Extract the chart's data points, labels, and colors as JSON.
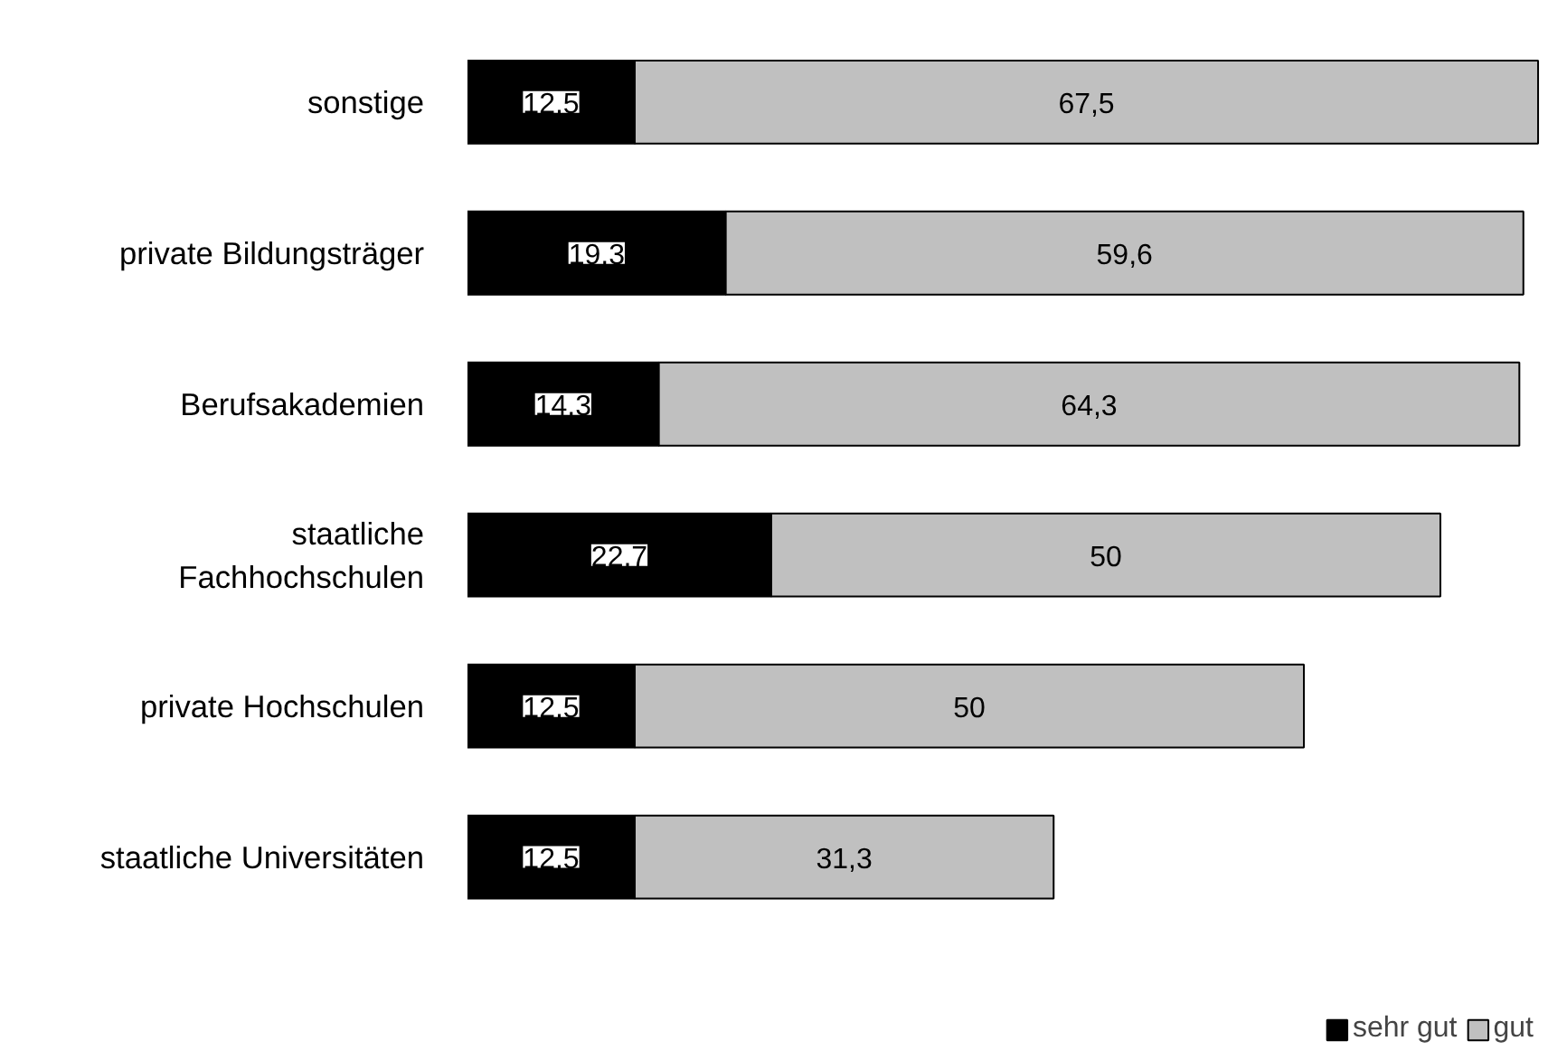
{
  "chart_data": {
    "type": "bar",
    "orientation": "horizontal",
    "stacked": true,
    "legend": "bottom right",
    "grid": false,
    "categories": [
      "sonstige",
      "private Bildungsträger",
      "Berufsakademien",
      "staatliche Fachhochschulen",
      "private Hochschulen",
      "staatliche Universitäten"
    ],
    "series": [
      {
        "name": "sehr gut",
        "color": "#000000",
        "values": [
          12.5,
          19.3,
          14.3,
          22.7,
          12.5,
          12.5
        ],
        "value_labels": [
          "12,5",
          "19,3",
          "14,3",
          "22,7",
          "12,5",
          "12,5"
        ]
      },
      {
        "name": "gut",
        "color": "#c0c0c0",
        "values": [
          67.5,
          59.6,
          64.3,
          50,
          50,
          31.3
        ],
        "value_labels": [
          "67,5",
          "59,6",
          "64,3",
          "50",
          "50",
          "31,3"
        ]
      }
    ]
  }
}
